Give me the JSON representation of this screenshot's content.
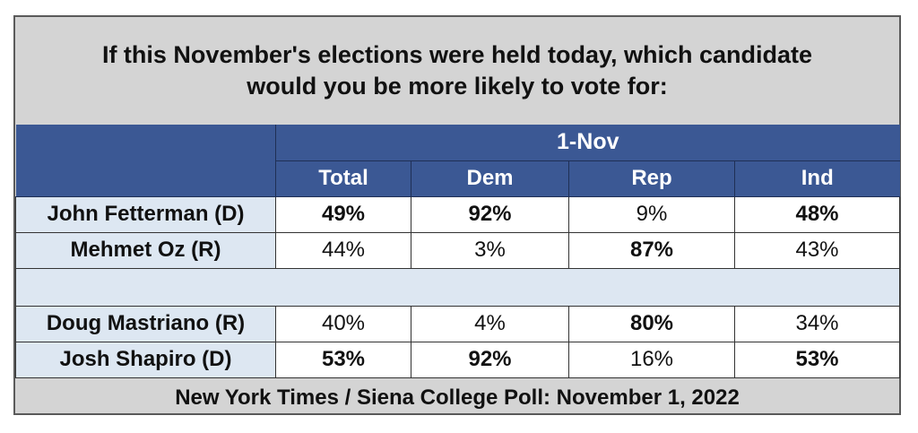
{
  "title_line1": "If this November's elections were held today, which candidate",
  "title_line2": "would you be more likely to vote for:",
  "date_header": "1-Nov",
  "columns": [
    "Total",
    "Dem",
    "Rep",
    "Ind"
  ],
  "rows": [
    {
      "name": "John Fetterman (D)",
      "values": [
        "49%",
        "92%",
        "9%",
        "48%"
      ],
      "bold": [
        true,
        true,
        false,
        true
      ]
    },
    {
      "name": "Mehmet Oz (R)",
      "values": [
        "44%",
        "3%",
        "87%",
        "43%"
      ],
      "bold": [
        false,
        false,
        true,
        false
      ]
    },
    {
      "name": "Doug Mastriano (R)",
      "values": [
        "40%",
        "4%",
        "80%",
        "34%"
      ],
      "bold": [
        false,
        false,
        true,
        false
      ]
    },
    {
      "name": "Josh Shapiro (D)",
      "values": [
        "53%",
        "92%",
        "16%",
        "53%"
      ],
      "bold": [
        true,
        true,
        false,
        true
      ]
    }
  ],
  "footer": "New York Times / Siena College Poll: November 1, 2022",
  "colors": {
    "header_blue": "#3b5894",
    "name_cell": "#dde7f2",
    "frame_gray": "#d4d4d4"
  }
}
